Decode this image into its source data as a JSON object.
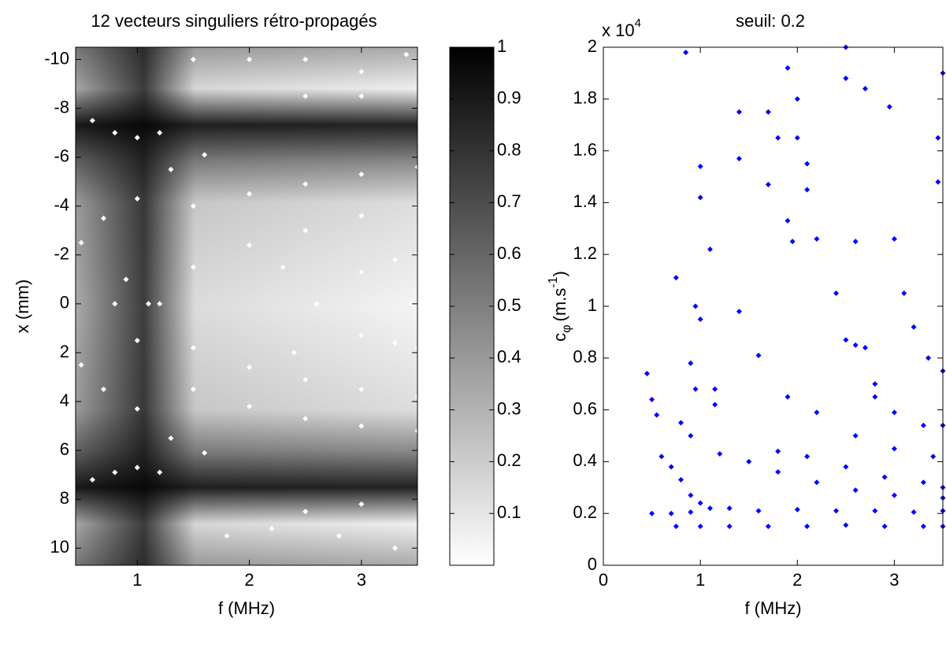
{
  "chart_data": [
    {
      "type": "scatter",
      "title": "12 vecteurs singuliers rétro-propagés",
      "xlabel": "f (MHz)",
      "ylabel": "x (mm)",
      "xlim": [
        0.45,
        3.5
      ],
      "ylim": [
        10.7,
        -10.5
      ],
      "xticks": [
        1,
        2,
        3
      ],
      "yticks": [
        -10,
        -8,
        -6,
        -4,
        -2,
        0,
        2,
        4,
        6,
        8,
        10
      ],
      "color": "#ffffff",
      "x": [
        0.6,
        0.8,
        1.0,
        1.2,
        0.6,
        0.8,
        1.0,
        1.2,
        0.5,
        0.7,
        1.0,
        1.3,
        1.6,
        0.5,
        0.7,
        1.0,
        1.3,
        1.6,
        1.5,
        2.0,
        2.5,
        3.0,
        3.5,
        1.5,
        2.0,
        2.5,
        3.0,
        3.5,
        1.2,
        1.5,
        2.0,
        2.5,
        3.0,
        3.5,
        1.5,
        2.0,
        2.5,
        3.0,
        3.5,
        3.0,
        3.3,
        3.5,
        3.0,
        3.3,
        3.5,
        1.5,
        2.0,
        2.5,
        3.0,
        3.4,
        2.5,
        3.0,
        1.8,
        2.2,
        2.8,
        3.3,
        2.5,
        3.0,
        0.9,
        1.1,
        0.8,
        1.0,
        2.3,
        2.6,
        2.4,
        3.45
      ],
      "values": [
        -7.5,
        -7.0,
        -6.8,
        -7.0,
        7.2,
        6.9,
        6.7,
        6.9,
        -2.5,
        -3.5,
        -4.3,
        -5.5,
        -6.1,
        2.5,
        3.5,
        4.3,
        5.5,
        6.1,
        -4.0,
        -4.5,
        -4.9,
        -5.3,
        -5.6,
        3.5,
        4.2,
        4.7,
        5.0,
        5.2,
        0.0,
        -1.5,
        -2.4,
        -3.0,
        -3.6,
        -4.0,
        1.8,
        2.6,
        3.1,
        3.5,
        3.8,
        -1.3,
        -1.8,
        -2.0,
        1.3,
        1.6,
        1.8,
        -10.0,
        -10.0,
        -10.0,
        -9.5,
        -10.2,
        -8.5,
        -8.5,
        9.5,
        9.2,
        9.5,
        10.0,
        8.5,
        8.2,
        -1.0,
        0.0,
        0.0,
        1.5,
        -1.5,
        0.0,
        2.0,
        0.0
      ],
      "colorbar": {
        "lim": [
          0,
          1
        ],
        "ticks": [
          0.1,
          0.2,
          0.3,
          0.4,
          0.5,
          0.6,
          0.7,
          0.8,
          0.9,
          1
        ]
      }
    },
    {
      "type": "scatter",
      "title": "seuil: 0.2",
      "xlabel": "f (MHz)",
      "ylabel": {
        "main": "c",
        "sub": "φ",
        "unit": "(m.s",
        "sup": "-1",
        "end": ")"
      },
      "multiplier": {
        "base": "x 10",
        "exponent": "4"
      },
      "xlim": [
        0,
        3.5
      ],
      "ylim": [
        0,
        20000
      ],
      "xticks": [
        0,
        1,
        2,
        3
      ],
      "yticks": [
        0,
        {
          "value": 2000,
          "label": "0.2"
        },
        {
          "value": 4000,
          "label": "0.4"
        },
        {
          "value": 6000,
          "label": "0.6"
        },
        {
          "value": 8000,
          "label": "0.8"
        },
        {
          "value": 10000,
          "label": "1"
        },
        {
          "value": 12000,
          "label": "1.2"
        },
        {
          "value": 14000,
          "label": "1.4"
        },
        {
          "value": 16000,
          "label": "1.6"
        },
        {
          "value": 18000,
          "label": "1.8"
        },
        {
          "value": 20000,
          "label": "2"
        }
      ],
      "color": "#0000ff",
      "x": [
        0.5,
        0.7,
        0.9,
        1.1,
        1.3,
        1.6,
        2.0,
        2.4,
        2.8,
        3.2,
        3.5,
        0.75,
        1.0,
        1.3,
        1.7,
        2.1,
        2.5,
        2.9,
        3.3,
        3.5,
        0.45,
        0.5,
        0.55,
        0.6,
        0.7,
        0.8,
        0.9,
        1.0,
        1.2,
        1.5,
        1.8,
        2.2,
        2.6,
        3.0,
        3.5,
        1.8,
        2.1,
        2.5,
        2.9,
        3.3,
        3.5,
        1.4,
        1.6,
        1.9,
        2.2,
        2.6,
        3.0,
        3.4,
        2.2,
        2.4,
        2.6,
        2.8,
        3.0,
        3.3,
        3.5,
        3.0,
        3.1,
        3.2,
        3.35,
        3.5,
        0.85,
        1.0,
        1.0,
        1.1,
        1.4,
        1.4,
        1.7,
        1.7,
        1.8,
        1.9,
        2.0,
        2.0,
        2.1,
        2.1,
        2.5,
        2.5,
        2.6,
        2.7,
        2.95,
        3.45,
        3.45,
        3.5,
        0.75,
        0.95,
        1.0,
        0.9,
        0.95,
        1.15,
        1.15,
        0.8,
        0.9,
        1.9,
        1.95,
        2.5,
        2.7,
        2.8
      ],
      "values": [
        2000,
        2000,
        2050,
        2200,
        2200,
        2100,
        2150,
        2100,
        2100,
        2050,
        2100,
        1500,
        1500,
        1500,
        1500,
        1500,
        1550,
        1500,
        1500,
        1500,
        7400,
        6400,
        5800,
        4200,
        3800,
        3300,
        2700,
        2400,
        4300,
        4000,
        3600,
        3200,
        2900,
        2700,
        2600,
        4400,
        4200,
        3800,
        3400,
        3200,
        3000,
        9800,
        8100,
        6500,
        5900,
        5000,
        4500,
        4200,
        12600,
        10500,
        8500,
        7000,
        5900,
        5400,
        5400,
        12600,
        10500,
        9200,
        8000,
        7500,
        19800,
        15400,
        14200,
        12200,
        17500,
        15700,
        17500,
        14700,
        16500,
        19200,
        18000,
        16500,
        15500,
        14500,
        20000,
        18800,
        12500,
        18400,
        17700,
        16500,
        14800,
        19000,
        11100,
        10000,
        9500,
        7800,
        6800,
        6800,
        6200,
        5500,
        5000,
        13300,
        12500,
        8700,
        8400,
        6500
      ]
    }
  ]
}
